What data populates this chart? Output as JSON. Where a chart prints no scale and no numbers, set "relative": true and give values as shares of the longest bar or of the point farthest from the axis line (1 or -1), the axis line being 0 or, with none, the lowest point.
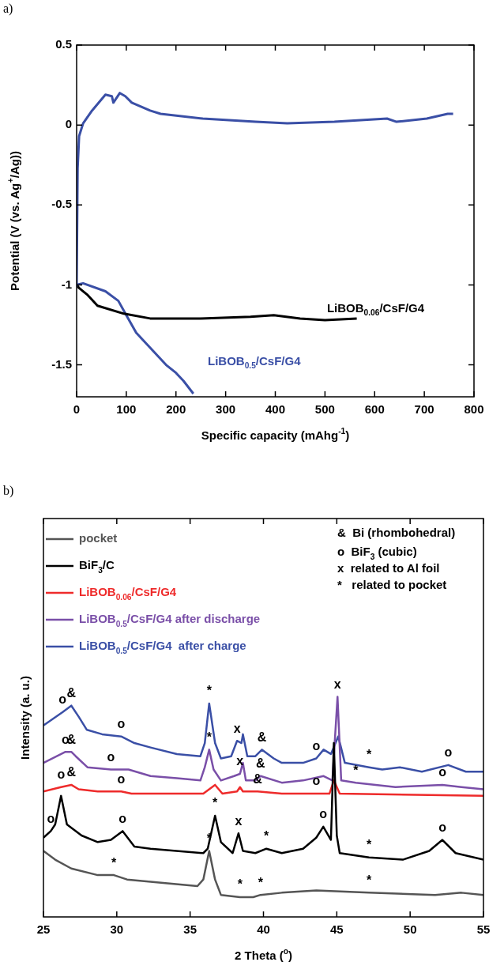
{
  "chart_data": [
    {
      "type": "line",
      "title": "a)",
      "xlabel": "Specific capacity (mAhg$^{-1}$)",
      "ylabel": "Potential (V (vs. Ag$^{+}$/Ag))",
      "xlim": [
        0,
        800
      ],
      "xticks": [
        0,
        100,
        200,
        300,
        400,
        500,
        600,
        700,
        800
      ],
      "ylim": [
        -1.7,
        0.5
      ],
      "yticks": [
        0.5,
        0,
        -0.5,
        -1,
        -1.5
      ],
      "grid": false,
      "legend": false,
      "series": [
        {
          "color": "#3a4fa6",
          "x": [
            0,
            2,
            5,
            13,
            31,
            58,
            71,
            74,
            87,
            98,
            111,
            148,
            169,
            254,
            360,
            424,
            519,
            625,
            644,
            705,
            747,
            758
          ],
          "values": [
            -1.01,
            -0.27,
            -0.07,
            0.01,
            0.09,
            0.19,
            0.18,
            0.14,
            0.2,
            0.18,
            0.14,
            0.09,
            0.07,
            0.04,
            0.02,
            0.01,
            0.02,
            0.04,
            0.02,
            0.04,
            0.07,
            0.07
          ]
        },
        {
          "name": "LiBOB$_{0.06}$/CsF/G4",
          "color": "#000000",
          "x": [
            0,
            5,
            21,
            42,
            95,
            148,
            250,
            350,
            397,
            450,
            500,
            564
          ],
          "values": [
            -1.0,
            -1.02,
            -1.06,
            -1.13,
            -1.18,
            -1.21,
            -1.21,
            -1.2,
            -1.19,
            -1.21,
            -1.22,
            -1.21
          ]
        },
        {
          "name": "LiBOB$_{0.5}$/CsF/G4",
          "color": "#3a4fa6",
          "x": [
            0,
            13,
            58,
            84,
            100,
            120,
            150,
            180,
            200,
            215,
            235
          ],
          "values": [
            -1.0,
            -0.99,
            -1.04,
            -1.1,
            -1.19,
            -1.3,
            -1.4,
            -1.5,
            -1.55,
            -1.6,
            -1.68
          ]
        }
      ]
    },
    {
      "type": "line",
      "title": "b)",
      "xlabel": "2 Theta ($^{o}$)",
      "ylabel": "Intensity (a. u.)",
      "relative": true,
      "xlim": [
        25,
        55
      ],
      "xticks": [
        25,
        30,
        35,
        40,
        45,
        50,
        55
      ],
      "grid": false,
      "legend": "top left",
      "series": [
        {
          "name": "pocket",
          "color": "#555555",
          "x": [
            25,
            25.8,
            26.9,
            28.7,
            29.8,
            30.7,
            32.3,
            35.5,
            35.9,
            36.3,
            36.7,
            37.1,
            38.4,
            39.3,
            39.8,
            41.25,
            43.6,
            47.2,
            51.7,
            53.5,
            55
          ],
          "values": [
            0.3,
            0.26,
            0.22,
            0.19,
            0.19,
            0.17,
            0.16,
            0.14,
            0.17,
            0.3,
            0.17,
            0.1,
            0.09,
            0.09,
            0.1,
            0.11,
            0.12,
            0.11,
            0.1,
            0.11,
            0.1
          ]
        },
        {
          "name": "BiF$_{3}$/C",
          "color": "#000000",
          "x": [
            25,
            25.5,
            25.8,
            26.2,
            26.6,
            27.6,
            28.7,
            29.6,
            30.4,
            31.2,
            32.3,
            35.9,
            36.2,
            36.7,
            37.1,
            37.9,
            38.3,
            38.6,
            39.45,
            40.2,
            41.25,
            42.7,
            43.6,
            44.08,
            44.6,
            44.8,
            45.0,
            45.2,
            47.2,
            49.5,
            51.3,
            52.2,
            53.1,
            55
          ],
          "values": [
            0.36,
            0.39,
            0.42,
            0.55,
            0.42,
            0.37,
            0.34,
            0.35,
            0.39,
            0.32,
            0.31,
            0.29,
            0.31,
            0.46,
            0.34,
            0.29,
            0.38,
            0.3,
            0.29,
            0.31,
            0.29,
            0.31,
            0.36,
            0.41,
            0.35,
            0.79,
            0.37,
            0.29,
            0.27,
            0.26,
            0.3,
            0.35,
            0.29,
            0.26
          ]
        },
        {
          "name": "LiBOB$_{0.06}$/CsF/G4",
          "color": "#ee2b2b",
          "x": [
            25,
            26.2,
            26.9,
            27.4,
            28.7,
            30.3,
            31.0,
            35.9,
            36.7,
            37.2,
            38.2,
            38.4,
            38.6,
            39.6,
            41.25,
            43.6,
            44.5,
            44.8,
            45.2,
            55
          ],
          "values": [
            0.57,
            0.59,
            0.6,
            0.58,
            0.57,
            0.57,
            0.56,
            0.56,
            0.6,
            0.56,
            0.57,
            0.59,
            0.57,
            0.57,
            0.56,
            0.56,
            0.56,
            0.62,
            0.56,
            0.55
          ]
        },
        {
          "name": "LiBOB$_{0.5}$/CsF/G4 after discharge",
          "color": "#7a4fa8",
          "x": [
            25,
            26.5,
            26.9,
            27.2,
            28.0,
            29.6,
            30.8,
            32.3,
            34.1,
            35.7,
            36.0,
            36.3,
            36.6,
            37.1,
            38.0,
            38.4,
            38.6,
            38.8,
            39.45,
            39.8,
            41.25,
            42.7,
            44.1,
            44.7,
            45.05,
            45.3,
            46.3,
            49.0,
            52.2,
            53.5,
            55
          ],
          "values": [
            0.7,
            0.75,
            0.75,
            0.73,
            0.68,
            0.67,
            0.67,
            0.64,
            0.63,
            0.62,
            0.68,
            0.76,
            0.67,
            0.62,
            0.64,
            0.65,
            0.7,
            0.62,
            0.62,
            0.64,
            0.61,
            0.62,
            0.64,
            0.62,
            1.0,
            0.62,
            0.61,
            0.59,
            0.6,
            0.59,
            0.58
          ]
        },
        {
          "name": "LiBOB$_{0.5}$/CsF/G4  after charge",
          "color": "#3a4fa6",
          "x": [
            25,
            26.3,
            26.9,
            27.4,
            27.96,
            29.0,
            30.3,
            31.2,
            32.3,
            34.1,
            35.7,
            36.0,
            36.3,
            36.7,
            37.1,
            37.8,
            38.2,
            38.5,
            38.6,
            38.9,
            39.45,
            39.9,
            40.7,
            41.25,
            42.7,
            43.6,
            44.1,
            44.6,
            45.1,
            45.55,
            47.2,
            48.1,
            49.3,
            50.8,
            52.6,
            53.8,
            55
          ],
          "values": [
            0.87,
            0.93,
            0.96,
            0.91,
            0.85,
            0.83,
            0.82,
            0.79,
            0.77,
            0.74,
            0.73,
            0.79,
            0.97,
            0.79,
            0.72,
            0.73,
            0.8,
            0.79,
            0.83,
            0.73,
            0.73,
            0.76,
            0.72,
            0.7,
            0.7,
            0.72,
            0.76,
            0.74,
            0.82,
            0.7,
            0.68,
            0.67,
            0.68,
            0.66,
            0.69,
            0.66,
            0.66
          ]
        }
      ],
      "annotations": [
        "&  Bi (rhombohedral)",
        "o  BiF$_{3}$ (cubic)",
        "x  related to Al foil",
        "*   related to pocket",
        {
          "text": "o",
          "x": 26.3,
          "y": 0.93
        },
        {
          "text": "&",
          "x": 26.9,
          "y": 0.96
        },
        {
          "text": "o",
          "x": 30.3,
          "y": 0.82
        },
        {
          "text": "*",
          "x": 36.3,
          "y": 0.97
        },
        {
          "text": "x",
          "x": 38.2,
          "y": 0.8
        },
        {
          "text": "&",
          "x": 39.9,
          "y": 0.76
        },
        {
          "text": "o",
          "x": 43.6,
          "y": 0.72
        },
        {
          "text": "x",
          "x": 45.05,
          "y": 1.0
        },
        {
          "text": "*",
          "x": 47.2,
          "y": 0.68
        },
        {
          "text": "o",
          "x": 52.6,
          "y": 0.69
        },
        {
          "text": "o",
          "x": 26.5,
          "y": 0.75
        },
        {
          "text": "&",
          "x": 26.9,
          "y": 0.75
        },
        {
          "text": "o",
          "x": 29.6,
          "y": 0.67
        },
        {
          "text": "*",
          "x": 36.3,
          "y": 0.76
        },
        {
          "text": "x",
          "x": 38.4,
          "y": 0.65
        },
        {
          "text": "&",
          "x": 39.8,
          "y": 0.64
        },
        {
          "text": "*",
          "x": 46.3,
          "y": 0.61
        },
        {
          "text": "o",
          "x": 52.2,
          "y": 0.6
        },
        {
          "text": "o",
          "x": 26.2,
          "y": 0.59
        },
        {
          "text": "&",
          "x": 26.9,
          "y": 0.6
        },
        {
          "text": "o",
          "x": 30.3,
          "y": 0.57
        },
        {
          "text": "&",
          "x": 39.6,
          "y": 0.57
        },
        {
          "text": "o",
          "x": 43.6,
          "y": 0.56
        },
        {
          "text": "o",
          "x": 25.5,
          "y": 0.39
        },
        {
          "text": "o",
          "x": 30.4,
          "y": 0.39
        },
        {
          "text": "*",
          "x": 36.7,
          "y": 0.46
        },
        {
          "text": "x",
          "x": 38.3,
          "y": 0.38
        },
        {
          "text": "*",
          "x": 40.2,
          "y": 0.31
        },
        {
          "text": "o",
          "x": 44.08,
          "y": 0.41
        },
        {
          "text": "*",
          "x": 47.2,
          "y": 0.27
        },
        {
          "text": "o",
          "x": 52.2,
          "y": 0.35
        },
        {
          "text": "*",
          "x": 29.8,
          "y": 0.19
        },
        {
          "text": "*",
          "x": 36.3,
          "y": 0.3
        },
        {
          "text": "*",
          "x": 38.4,
          "y": 0.09
        },
        {
          "text": "*",
          "x": 39.8,
          "y": 0.1
        },
        {
          "text": "*",
          "x": 47.2,
          "y": 0.11
        }
      ]
    }
  ]
}
